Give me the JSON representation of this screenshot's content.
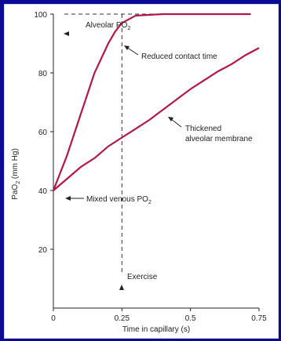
{
  "chart_data": {
    "type": "line",
    "xlabel": "Time in capillary (s)",
    "ylabel": "PaO",
    "ylabel_sub": "2",
    "ylabel_suffix": " (mm Hg)",
    "xlim": [
      0,
      0.75
    ],
    "ylim": [
      0,
      100
    ],
    "x_ticks": [
      {
        "value": 0,
        "label": "0"
      },
      {
        "value": 0.25,
        "label": "0.25"
      },
      {
        "value": 0.5,
        "label": "0.5"
      },
      {
        "value": 0.75,
        "label": "0.75"
      }
    ],
    "y_ticks": [
      {
        "value": 20,
        "label": "20"
      },
      {
        "value": 40,
        "label": "40"
      },
      {
        "value": 60,
        "label": "60"
      },
      {
        "value": 80,
        "label": "80"
      },
      {
        "value": 100,
        "label": "100"
      }
    ],
    "line_color": "#b0184a",
    "series": [
      {
        "x": [
          0,
          0.05,
          0.1,
          0.15,
          0.2,
          0.225,
          0.25,
          0.3,
          0.4,
          0.5,
          0.6,
          0.72
        ],
        "y": [
          40,
          52,
          66,
          80,
          90,
          94,
          97,
          99.5,
          100,
          100,
          100,
          100
        ]
      },
      {
        "x": [
          0,
          0.05,
          0.1,
          0.15,
          0.2,
          0.25,
          0.3,
          0.35,
          0.4,
          0.45,
          0.5,
          0.55,
          0.6,
          0.65,
          0.7,
          0.75
        ],
        "y": [
          40,
          44,
          48,
          51,
          55,
          58,
          61,
          64,
          67.5,
          71,
          74.5,
          77.5,
          80.5,
          83,
          86,
          88.5
        ]
      }
    ],
    "annotations": {
      "alveolar": {
        "text": "Alveolar PO",
        "sub": "2"
      },
      "reduced": {
        "text": "Reduced contact time"
      },
      "thickened_line1": {
        "text": "Thickened"
      },
      "thickened_line2": {
        "text": "alveolar membrane"
      },
      "mixed": {
        "text": "Mixed venous PO",
        "sub": "2"
      },
      "exercise": {
        "text": "Exercise"
      }
    }
  }
}
